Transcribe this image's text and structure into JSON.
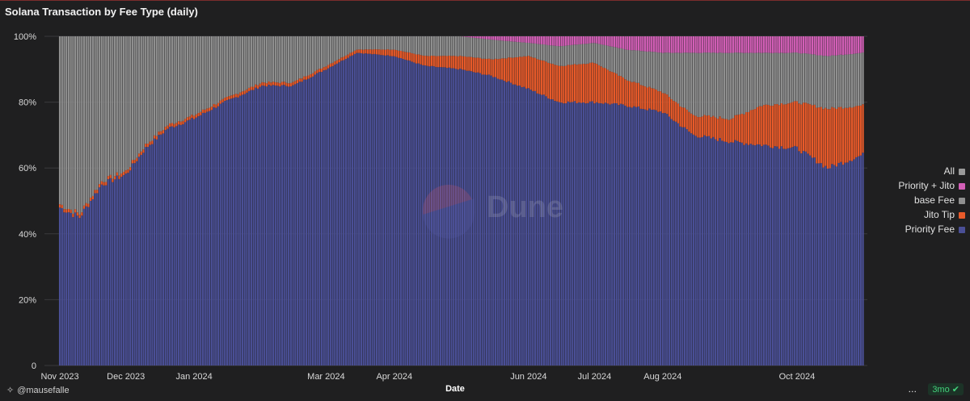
{
  "page": {
    "title": "Solana Transaction by Fee Type (daily)"
  },
  "footer": {
    "user": "@mausefalle",
    "more": "…",
    "refresh": "3mo",
    "refresh_icon": "check-circle-icon"
  },
  "watermark": {
    "text": "Dune"
  },
  "colors": {
    "background": "#1f1f20",
    "priority_fee": "#4a4f96",
    "jito_tip": "#e85a2a",
    "base_fee": "#8f8f8f",
    "priority_jito": "#d35fb7",
    "all": "#9a9a9a"
  },
  "chart_data": {
    "type": "bar",
    "stacked": true,
    "normalized": true,
    "title": "Solana Transaction by Fee Type (daily)",
    "xlabel": "Date",
    "ylabel": "",
    "ylim": [
      0,
      100
    ],
    "yticks": [
      "0",
      "20%",
      "40%",
      "60%",
      "80%",
      "100%"
    ],
    "xticks": [
      "Nov 2023",
      "Dec 2023",
      "Jan 2024",
      "Mar 2024",
      "Apr 2024",
      "Jun 2024",
      "Jul 2024",
      "Aug 2024",
      "Oct 2024"
    ],
    "legend_position": "right",
    "legend": [
      "All",
      "Priority + Jito",
      "base Fee",
      "Jito Tip",
      "Priority Fee"
    ],
    "series_anchors": [
      {
        "date": "2023-11-01",
        "priority_fee": 48,
        "jito_tip": 1,
        "base_fee": 51,
        "priority_jito": 0
      },
      {
        "date": "2023-11-10",
        "priority_fee": 45,
        "jito_tip": 1,
        "base_fee": 54,
        "priority_jito": 0
      },
      {
        "date": "2023-11-20",
        "priority_fee": 55,
        "jito_tip": 1,
        "base_fee": 44,
        "priority_jito": 0
      },
      {
        "date": "2023-12-01",
        "priority_fee": 58,
        "jito_tip": 1,
        "base_fee": 41,
        "priority_jito": 0
      },
      {
        "date": "2023-12-10",
        "priority_fee": 66,
        "jito_tip": 1,
        "base_fee": 33,
        "priority_jito": 0
      },
      {
        "date": "2023-12-20",
        "priority_fee": 72,
        "jito_tip": 1,
        "base_fee": 27,
        "priority_jito": 0
      },
      {
        "date": "2024-01-01",
        "priority_fee": 75,
        "jito_tip": 1,
        "base_fee": 24,
        "priority_jito": 0
      },
      {
        "date": "2024-01-15",
        "priority_fee": 80,
        "jito_tip": 1,
        "base_fee": 19,
        "priority_jito": 0
      },
      {
        "date": "2024-02-01",
        "priority_fee": 85,
        "jito_tip": 1,
        "base_fee": 14,
        "priority_jito": 0
      },
      {
        "date": "2024-02-15",
        "priority_fee": 85,
        "jito_tip": 1,
        "base_fee": 14,
        "priority_jito": 0
      },
      {
        "date": "2024-03-01",
        "priority_fee": 90,
        "jito_tip": 1,
        "base_fee": 9,
        "priority_jito": 0
      },
      {
        "date": "2024-03-15",
        "priority_fee": 95,
        "jito_tip": 1,
        "base_fee": 4,
        "priority_jito": 0
      },
      {
        "date": "2024-04-01",
        "priority_fee": 94,
        "jito_tip": 2,
        "base_fee": 4,
        "priority_jito": 0
      },
      {
        "date": "2024-04-15",
        "priority_fee": 91,
        "jito_tip": 3,
        "base_fee": 6,
        "priority_jito": 0
      },
      {
        "date": "2024-05-01",
        "priority_fee": 90,
        "jito_tip": 4,
        "base_fee": 6,
        "priority_jito": 0
      },
      {
        "date": "2024-05-15",
        "priority_fee": 88,
        "jito_tip": 5,
        "base_fee": 6,
        "priority_jito": 1
      },
      {
        "date": "2024-06-01",
        "priority_fee": 84,
        "jito_tip": 10,
        "base_fee": 4,
        "priority_jito": 2
      },
      {
        "date": "2024-06-15",
        "priority_fee": 80,
        "jito_tip": 11,
        "base_fee": 6,
        "priority_jito": 3
      },
      {
        "date": "2024-07-01",
        "priority_fee": 80,
        "jito_tip": 12,
        "base_fee": 6,
        "priority_jito": 2
      },
      {
        "date": "2024-07-15",
        "priority_fee": 79,
        "jito_tip": 8,
        "base_fee": 9,
        "priority_jito": 4
      },
      {
        "date": "2024-08-01",
        "priority_fee": 77,
        "jito_tip": 6,
        "base_fee": 12,
        "priority_jito": 5
      },
      {
        "date": "2024-08-15",
        "priority_fee": 70,
        "jito_tip": 6,
        "base_fee": 19,
        "priority_jito": 5
      },
      {
        "date": "2024-09-01",
        "priority_fee": 68,
        "jito_tip": 7,
        "base_fee": 20,
        "priority_jito": 5
      },
      {
        "date": "2024-09-15",
        "priority_fee": 67,
        "jito_tip": 12,
        "base_fee": 16,
        "priority_jito": 5
      },
      {
        "date": "2024-10-01",
        "priority_fee": 66,
        "jito_tip": 14,
        "base_fee": 15,
        "priority_jito": 5
      },
      {
        "date": "2024-10-15",
        "priority_fee": 60,
        "jito_tip": 18,
        "base_fee": 16,
        "priority_jito": 6
      },
      {
        "date": "2024-10-31",
        "priority_fee": 64,
        "jito_tip": 15,
        "base_fee": 16,
        "priority_jito": 5
      }
    ],
    "series": [
      {
        "name": "Priority Fee",
        "key": "priority_fee",
        "color": "#4a4f96"
      },
      {
        "name": "Jito Tip",
        "key": "jito_tip",
        "color": "#e85a2a"
      },
      {
        "name": "base Fee",
        "key": "base_fee",
        "color": "#8f8f8f"
      },
      {
        "name": "Priority + Jito",
        "key": "priority_jito",
        "color": "#d35fb7"
      }
    ]
  },
  "legend_items": [
    {
      "label": "All",
      "color": "#9a9a9a"
    },
    {
      "label": "Priority + Jito",
      "color": "#d35fb7"
    },
    {
      "label": "base Fee",
      "color": "#8f8f8f"
    },
    {
      "label": "Jito Tip",
      "color": "#e85a2a"
    },
    {
      "label": "Priority Fee",
      "color": "#4a4f96"
    }
  ]
}
